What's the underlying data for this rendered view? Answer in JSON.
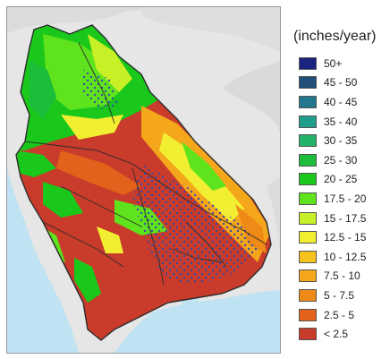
{
  "map": {
    "unit_label": "(inches/year)",
    "legend": [
      {
        "label": "50+",
        "color": "#1a237e"
      },
      {
        "label": "45 - 50",
        "color": "#1f4e79"
      },
      {
        "label": "40 - 45",
        "color": "#21788f"
      },
      {
        "label": "35 - 40",
        "color": "#1e9c8c"
      },
      {
        "label": "30 - 35",
        "color": "#22b26a"
      },
      {
        "label": "25 - 30",
        "color": "#1bbd3a"
      },
      {
        "label": "20 - 25",
        "color": "#19c81a"
      },
      {
        "label": "17.5 - 20",
        "color": "#5ee31c"
      },
      {
        "label": "15 - 17.5",
        "color": "#c8f026"
      },
      {
        "label": "12.5 - 15",
        "color": "#f2ef32"
      },
      {
        "label": "10 - 12.5",
        "color": "#f6c21c"
      },
      {
        "label": "7.5 - 10",
        "color": "#f5a71b"
      },
      {
        "label": "5 - 7.5",
        "color": "#ef8a16"
      },
      {
        "label": "2.5 - 5",
        "color": "#e2621c"
      },
      {
        "label": "< 2.5",
        "color": "#c93b2a"
      }
    ],
    "colors": {
      "water": "#bfe3f3",
      "land": "#e9e9e9",
      "boundary": "#2d2d2d",
      "stipple": "#3b4aa0"
    }
  }
}
